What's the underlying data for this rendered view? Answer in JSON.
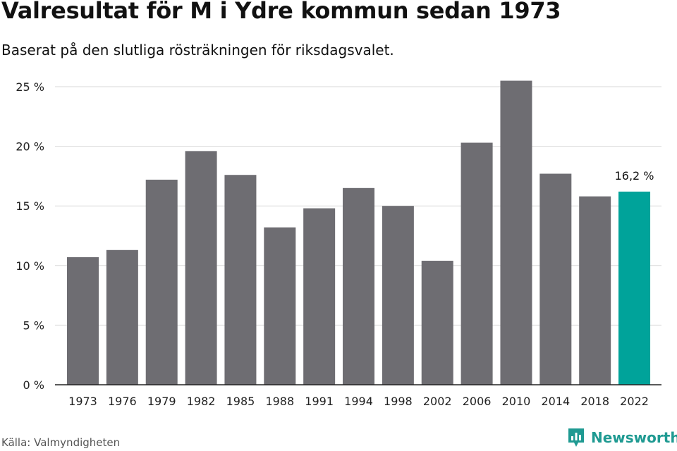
{
  "header": {
    "title": "Valresultat för M i Ydre kommun sedan 1973",
    "subtitle": "Baserat på den slutliga rösträkningen för riksdagsvalet."
  },
  "footer": {
    "source": "Källa: Valmyndigheten",
    "brand": "Newsworthy"
  },
  "colors": {
    "bar": "#6e6d72",
    "highlight": "#00a39a",
    "grid": "#d9d9d9",
    "axis": "#222222"
  },
  "chart_data": {
    "type": "bar",
    "title": "Valresultat för M i Ydre kommun sedan 1973",
    "subtitle": "Baserat på den slutliga rösträkningen för riksdagsvalet.",
    "xlabel": "",
    "ylabel": "",
    "ylim": [
      0,
      25
    ],
    "yticks": [
      0,
      5,
      10,
      15,
      20,
      25
    ],
    "ytick_labels": [
      "0 %",
      "5 %",
      "10 %",
      "15 %",
      "20 %",
      "25 %"
    ],
    "grid": true,
    "categories": [
      "1973",
      "1976",
      "1979",
      "1982",
      "1985",
      "1988",
      "1991",
      "1994",
      "1998",
      "2002",
      "2006",
      "2010",
      "2014",
      "2018",
      "2022"
    ],
    "values": [
      10.7,
      11.3,
      17.2,
      19.6,
      17.6,
      13.2,
      14.8,
      16.5,
      15.0,
      10.4,
      20.3,
      25.5,
      17.7,
      15.8,
      16.2
    ],
    "highlight_index": 14,
    "annotations": [
      {
        "category": "2022",
        "text": "16,2 %"
      }
    ]
  }
}
